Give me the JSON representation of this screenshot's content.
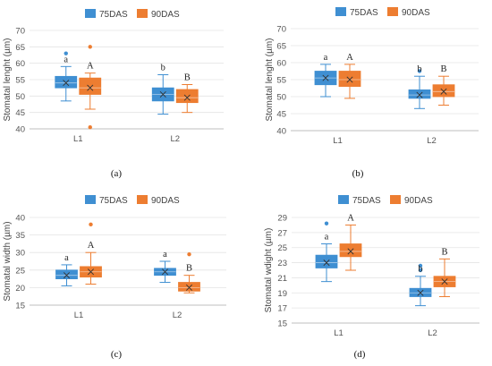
{
  "series_colors": {
    "75DAS": "#3F8FD2",
    "90DAS": "#ED7D31"
  },
  "legend": [
    "75DAS",
    "90DAS"
  ],
  "chart_data": [
    {
      "type": "boxplot",
      "panel_label": "(a)",
      "ylabel": "Stomatal lenght (µm)",
      "ylim": [
        40,
        70
      ],
      "yticks": [
        40,
        45,
        50,
        55,
        60,
        65,
        70
      ],
      "categories": [
        "L1",
        "L2"
      ],
      "series": [
        {
          "name": "75DAS",
          "groups": [
            {
              "category": "L1",
              "whisker_low": 48.5,
              "q1": 52.5,
              "median": 54,
              "mean": 54,
              "q3": 56,
              "whisker_high": 59,
              "outliers": [
                63
              ],
              "label": "a"
            },
            {
              "category": "L2",
              "whisker_low": 44.5,
              "q1": 48.5,
              "median": 50.5,
              "mean": 50.5,
              "q3": 52.5,
              "whisker_high": 56.5,
              "outliers": [],
              "label": "b"
            }
          ]
        },
        {
          "name": "90DAS",
          "groups": [
            {
              "category": "L1",
              "whisker_low": 46,
              "q1": 50.5,
              "median": 52.5,
              "mean": 52.5,
              "q3": 55.5,
              "whisker_high": 57,
              "outliers": [
                65,
                40.5
              ],
              "label": "A"
            },
            {
              "category": "L2",
              "whisker_low": 45,
              "q1": 48,
              "median": 49.5,
              "mean": 49.5,
              "q3": 52,
              "whisker_high": 53.5,
              "outliers": [],
              "label": "B"
            }
          ]
        }
      ]
    },
    {
      "type": "boxplot",
      "panel_label": "(b)",
      "ylabel": "Stomatal lenght (µm)",
      "ylim": [
        40,
        70
      ],
      "yticks": [
        40,
        45,
        50,
        55,
        60,
        65,
        70
      ],
      "categories": [
        "L1",
        "L2"
      ],
      "series": [
        {
          "name": "75DAS",
          "groups": [
            {
              "category": "L1",
              "whisker_low": 50,
              "q1": 53.5,
              "median": 55.5,
              "mean": 55.5,
              "q3": 57.5,
              "whisker_high": 59.5,
              "outliers": [],
              "label": "a"
            },
            {
              "category": "L2",
              "whisker_low": 46.5,
              "q1": 49.5,
              "median": 50.5,
              "mean": 50.5,
              "q3": 52,
              "whisker_high": 56,
              "outliers": [
                57.5
              ],
              "label": "b"
            }
          ]
        },
        {
          "name": "90DAS",
          "groups": [
            {
              "category": "L1",
              "whisker_low": 49.5,
              "q1": 53,
              "median": 55,
              "mean": 55,
              "q3": 57.5,
              "whisker_high": 59.5,
              "outliers": [],
              "label": "A"
            },
            {
              "category": "L2",
              "whisker_low": 47.5,
              "q1": 50,
              "median": 51.5,
              "mean": 51.5,
              "q3": 53.5,
              "whisker_high": 56,
              "outliers": [],
              "label": "B"
            }
          ]
        }
      ]
    },
    {
      "type": "boxplot",
      "panel_label": "(c)",
      "ylabel": "Stomatal width (µm)",
      "ylim": [
        15,
        40
      ],
      "yticks": [
        15,
        20,
        25,
        30,
        35,
        40
      ],
      "categories": [
        "L1",
        "L2"
      ],
      "series": [
        {
          "name": "75DAS",
          "groups": [
            {
              "category": "L1",
              "whisker_low": 20.5,
              "q1": 22.5,
              "median": 23.5,
              "mean": 23.5,
              "q3": 25,
              "whisker_high": 26.5,
              "outliers": [],
              "label": "a"
            },
            {
              "category": "L2",
              "whisker_low": 21.5,
              "q1": 23.5,
              "median": 24.5,
              "mean": 24.5,
              "q3": 25.5,
              "whisker_high": 27.5,
              "outliers": [],
              "label": "a"
            }
          ]
        },
        {
          "name": "90DAS",
          "groups": [
            {
              "category": "L1",
              "whisker_low": 21,
              "q1": 23,
              "median": 24.5,
              "mean": 24.5,
              "q3": 26,
              "whisker_high": 30,
              "outliers": [
                38
              ],
              "label": "A"
            },
            {
              "category": "L2",
              "whisker_low": 18.5,
              "q1": 19,
              "median": 20,
              "mean": 20,
              "q3": 21.5,
              "whisker_high": 23.5,
              "outliers": [
                29.5
              ],
              "label": "B"
            }
          ]
        }
      ]
    },
    {
      "type": "boxplot",
      "panel_label": "(d)",
      "ylabel": "Stomatal wdight (µm)",
      "ylim": [
        15,
        29
      ],
      "yticks": [
        15,
        17,
        19,
        21,
        23,
        25,
        27,
        29
      ],
      "categories": [
        "L1",
        "L2"
      ],
      "series": [
        {
          "name": "75DAS",
          "groups": [
            {
              "category": "L1",
              "whisker_low": 20.5,
              "q1": 22.3,
              "median": 23,
              "mean": 23,
              "q3": 24,
              "whisker_high": 25.5,
              "outliers": [
                28.2
              ],
              "label": "a"
            },
            {
              "category": "L2",
              "whisker_low": 17.3,
              "q1": 18.5,
              "median": 19,
              "mean": 19,
              "q3": 19.6,
              "whisker_high": 21.2,
              "outliers": [
                22,
                22.6
              ],
              "label": "b"
            }
          ]
        },
        {
          "name": "90DAS",
          "groups": [
            {
              "category": "L1",
              "whisker_low": 22,
              "q1": 23.8,
              "median": 24.5,
              "mean": 24.5,
              "q3": 25.5,
              "whisker_high": 28,
              "outliers": [],
              "label": "A"
            },
            {
              "category": "L2",
              "whisker_low": 18.5,
              "q1": 19.8,
              "median": 20.5,
              "mean": 20.5,
              "q3": 21.2,
              "whisker_high": 23.5,
              "outliers": [],
              "label": "B"
            }
          ]
        }
      ]
    }
  ]
}
